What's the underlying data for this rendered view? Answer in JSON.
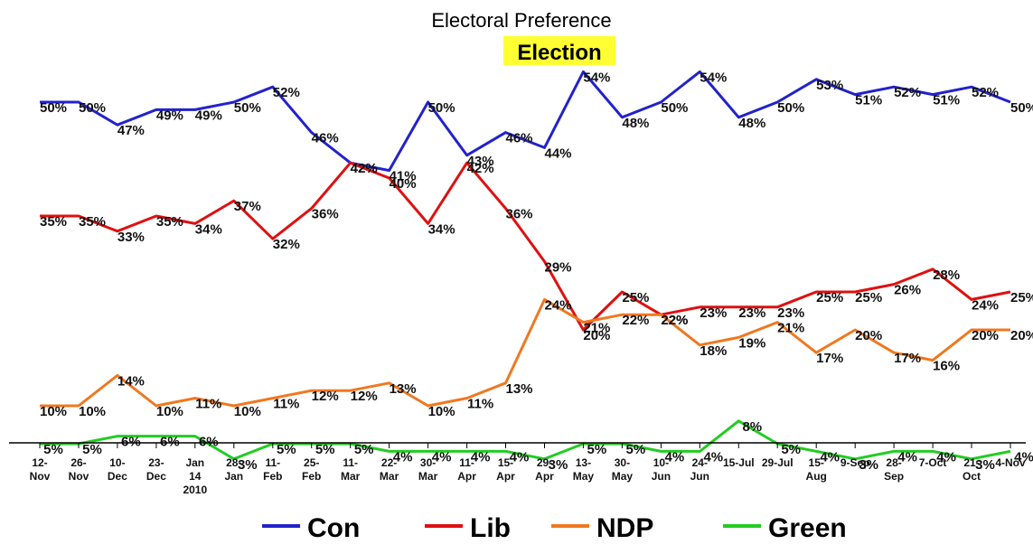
{
  "chart_data": {
    "type": "line",
    "title": "Electoral Preference",
    "annotation": "Election",
    "xlabel": "",
    "ylabel": "",
    "ylim": [
      0,
      60
    ],
    "grid": false,
    "legend_position": "bottom",
    "categories": [
      [
        "12-",
        "Nov"
      ],
      [
        "26-",
        "Nov"
      ],
      [
        "10-",
        "Dec"
      ],
      [
        "23-",
        "Dec"
      ],
      [
        "Jan",
        "14",
        "2010"
      ],
      [
        "28-",
        "Jan"
      ],
      [
        "11-",
        "Feb"
      ],
      [
        "25-",
        "Feb"
      ],
      [
        "11-",
        "Mar"
      ],
      [
        "22-",
        "Mar"
      ],
      [
        "30-",
        "Mar"
      ],
      [
        "11-",
        "Apr"
      ],
      [
        "15-",
        "Apr"
      ],
      [
        "29-",
        "Apr"
      ],
      [
        "13-",
        "May"
      ],
      [
        "30-",
        "May"
      ],
      [
        "10-",
        "Jun"
      ],
      [
        "24-",
        "Jun"
      ],
      [
        "15-Jul"
      ],
      [
        "29-Jul"
      ],
      [
        "15-",
        "Aug"
      ],
      [
        "9-Sep"
      ],
      [
        "28-",
        "Sep"
      ],
      [
        "7-Oct"
      ],
      [
        "21-",
        "Oct"
      ],
      [
        "4-Nov"
      ]
    ],
    "series": [
      {
        "name": "Con",
        "color": "#2222cc",
        "values": [
          50,
          50,
          47,
          49,
          49,
          50,
          52,
          46,
          42,
          41,
          50,
          43,
          46,
          44,
          54,
          48,
          50,
          54,
          48,
          50,
          53,
          51,
          52,
          51,
          52,
          50
        ]
      },
      {
        "name": "Lib",
        "color": "#e01010",
        "values": [
          35,
          35,
          33,
          35,
          34,
          37,
          32,
          36,
          42,
          40,
          34,
          42,
          36,
          29,
          20,
          25,
          22,
          23,
          23,
          23,
          25,
          25,
          26,
          28,
          24,
          25
        ]
      },
      {
        "name": "NDP",
        "color": "#f07820",
        "values": [
          10,
          10,
          14,
          10,
          11,
          10,
          11,
          12,
          12,
          13,
          10,
          11,
          13,
          24,
          21,
          22,
          22,
          18,
          19,
          21,
          17,
          20,
          17,
          16,
          20,
          20
        ]
      },
      {
        "name": "Green",
        "color": "#22cc22",
        "values": [
          5,
          5,
          6,
          6,
          6,
          3,
          5,
          5,
          5,
          4,
          4,
          4,
          4,
          3,
          5,
          5,
          4,
          4,
          8,
          5,
          4,
          3,
          4,
          4,
          3,
          4
        ]
      }
    ]
  }
}
